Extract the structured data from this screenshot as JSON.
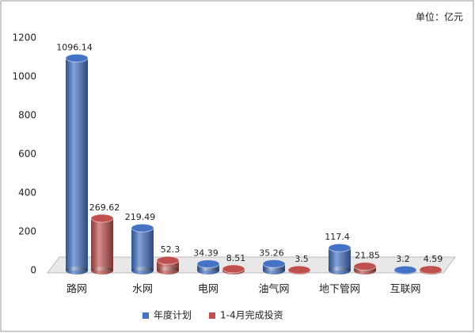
{
  "chart_data": {
    "type": "bar",
    "unit_note": "单位：亿元",
    "categories": [
      "路网",
      "水网",
      "电网",
      "油气网",
      "地下管网",
      "互联网"
    ],
    "series": [
      {
        "name": "年度计划",
        "color": "#4472c4",
        "values": [
          1096.14,
          219.49,
          34.39,
          35.26,
          117.4,
          3.2
        ]
      },
      {
        "name": "1-4月完成投资",
        "color": "#c0504d",
        "values": [
          269.62,
          52.3,
          8.51,
          3.5,
          21.85,
          4.59
        ]
      }
    ],
    "ylim": [
      0,
      1200
    ],
    "yticks": [
      0,
      200,
      400,
      600,
      800,
      1000,
      1200
    ],
    "legend": "bottom"
  }
}
